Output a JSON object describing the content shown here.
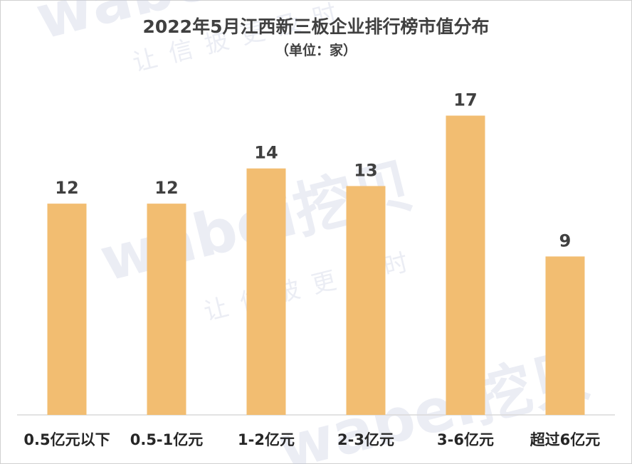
{
  "chart_data": {
    "type": "bar",
    "title": "2022年5月江西新三板企业排行榜市值分布",
    "subtitle": "（单位：家）",
    "categories": [
      "0.5亿元以下",
      "0.5-1亿元",
      "1-2亿元",
      "2-3亿元",
      "3-6亿元",
      "超过6亿元"
    ],
    "values": [
      12,
      12,
      14,
      13,
      17,
      9
    ],
    "ylim": [
      0,
      19
    ],
    "grid": false,
    "legend": "none",
    "bar_color": "#f2bd71"
  },
  "watermark": {
    "brand": "wabei挖贝",
    "slogan": "让信披更及时"
  }
}
